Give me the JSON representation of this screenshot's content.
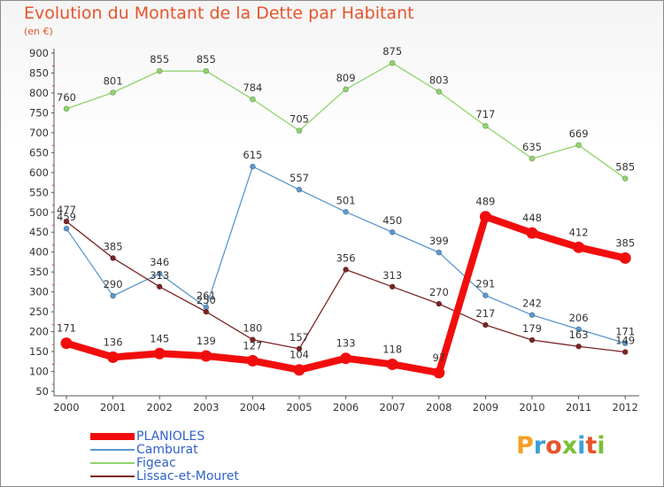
{
  "header": {
    "title": "Evolution du Montant de la Dette par Habitant",
    "subtitle": "(en €)"
  },
  "logo": {
    "text": "Proxiti",
    "colors": [
      "#f2a026",
      "#3aa1d8",
      "#e8532a",
      "#7bbf3a",
      "#3aa1d8",
      "#e8532a",
      "#7bbf3a"
    ]
  },
  "chart_data": {
    "type": "line",
    "title": "Evolution du Montant de la Dette par Habitant",
    "subtitle": "(en €)",
    "x": [
      "2000",
      "2001",
      "2002",
      "2003",
      "2004",
      "2005",
      "2006",
      "2007",
      "2008",
      "2009",
      "2010",
      "2011",
      "2012"
    ],
    "ylim": [
      50,
      900
    ],
    "yticks": [
      50,
      100,
      150,
      200,
      250,
      300,
      350,
      400,
      450,
      500,
      550,
      600,
      650,
      700,
      750,
      800,
      850,
      900
    ],
    "grid": false,
    "legend_position": "bottom-left",
    "series": [
      {
        "name": "Figeac",
        "color": "#8fd46b",
        "values": [
          760,
          801,
          855,
          855,
          784,
          705,
          809,
          875,
          803,
          717,
          635,
          669,
          585
        ]
      },
      {
        "name": "Camburat",
        "color": "#5b97cc",
        "values": [
          459,
          290,
          346,
          261,
          615,
          557,
          501,
          450,
          399,
          291,
          242,
          206,
          171
        ]
      },
      {
        "name": "Lissac-et-Mouret",
        "color": "#7a2424",
        "values": [
          477,
          385,
          313,
          250,
          180,
          157,
          356,
          313,
          270,
          217,
          179,
          163,
          149
        ]
      },
      {
        "name": "PLANIOLES",
        "color": "#f20d0d",
        "values": [
          171,
          136,
          145,
          139,
          127,
          104,
          133,
          118,
          97,
          489,
          448,
          412,
          385
        ]
      }
    ]
  }
}
